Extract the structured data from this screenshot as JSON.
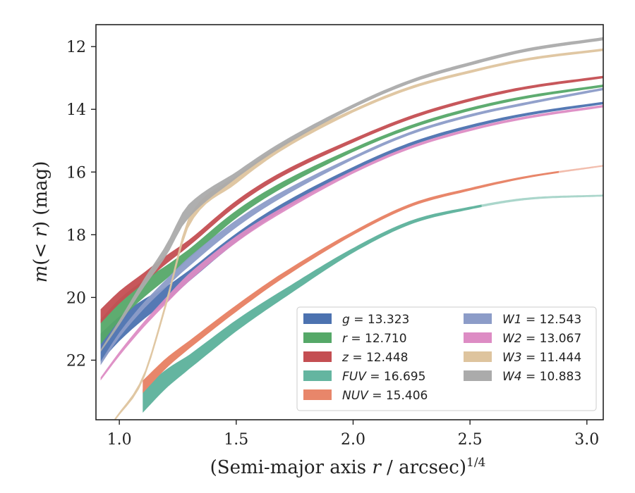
{
  "chart_data": {
    "type": "line",
    "xlabel_main": "(Semi-major axis r / arcsec)",
    "xlabel_sup": "1/4",
    "ylabel": "m(< r) (mag)",
    "xlim": [
      0.9,
      3.07
    ],
    "ylim": [
      23.9,
      11.3
    ],
    "y_inverted": true,
    "xticks": [
      "1.0",
      "1.5",
      "2.0",
      "2.5",
      "3.0"
    ],
    "yticks": [
      "12",
      "14",
      "16",
      "18",
      "20",
      "22"
    ],
    "xtick_values": [
      1.0,
      1.5,
      2.0,
      2.5,
      3.0
    ],
    "ytick_values": [
      12,
      14,
      16,
      18,
      20,
      22
    ],
    "legend_position": "lower-right",
    "series": [
      {
        "name": "g = 13.323",
        "band": "g",
        "mag": "13.323",
        "color": "#4c72b0",
        "points": [
          [
            0.92,
            21.6
          ],
          [
            1.0,
            21.0
          ],
          [
            1.1,
            20.4
          ],
          [
            1.2,
            19.9
          ],
          [
            1.3,
            19.3
          ],
          [
            1.5,
            18.1
          ],
          [
            1.7,
            17.1
          ],
          [
            2.0,
            15.9
          ],
          [
            2.25,
            15.1
          ],
          [
            2.5,
            14.55
          ],
          [
            2.75,
            14.15
          ],
          [
            3.07,
            13.8
          ]
        ],
        "width": [
          [
            0.92,
            0.9
          ],
          [
            1.3,
            0.35
          ],
          [
            2.0,
            0.12
          ],
          [
            3.07,
            0.08
          ]
        ]
      },
      {
        "name": "r = 12.710",
        "band": "r",
        "mag": "12.710",
        "color": "#55a868",
        "points": [
          [
            0.92,
            21.1
          ],
          [
            1.0,
            20.4
          ],
          [
            1.1,
            19.75
          ],
          [
            1.2,
            19.2
          ],
          [
            1.3,
            18.6
          ],
          [
            1.5,
            17.35
          ],
          [
            1.7,
            16.4
          ],
          [
            2.0,
            15.3
          ],
          [
            2.25,
            14.55
          ],
          [
            2.5,
            14.0
          ],
          [
            2.75,
            13.6
          ],
          [
            3.07,
            13.25
          ]
        ],
        "width": [
          [
            0.92,
            0.8
          ],
          [
            1.3,
            0.3
          ],
          [
            2.0,
            0.12
          ],
          [
            3.07,
            0.08
          ]
        ]
      },
      {
        "name": "z = 12.448",
        "band": "z",
        "mag": "12.448",
        "color": "#c44e52",
        "points": [
          [
            0.92,
            20.6
          ],
          [
            1.0,
            20.0
          ],
          [
            1.1,
            19.4
          ],
          [
            1.2,
            18.8
          ],
          [
            1.3,
            18.25
          ],
          [
            1.5,
            17.0
          ],
          [
            1.7,
            16.05
          ],
          [
            2.0,
            15.0
          ],
          [
            2.25,
            14.25
          ],
          [
            2.5,
            13.7
          ],
          [
            2.75,
            13.3
          ],
          [
            3.07,
            12.97
          ]
        ],
        "width": [
          [
            0.92,
            0.45
          ],
          [
            1.3,
            0.2
          ],
          [
            2.0,
            0.12
          ],
          [
            3.07,
            0.08
          ]
        ]
      },
      {
        "name": "FUV = 16.695",
        "band": "FUV",
        "mag": "16.695",
        "color": "#64b5a0",
        "points": [
          [
            1.1,
            23.3
          ],
          [
            1.2,
            22.6
          ],
          [
            1.3,
            22.05
          ],
          [
            1.5,
            20.9
          ],
          [
            1.7,
            19.9
          ],
          [
            2.0,
            18.5
          ],
          [
            2.25,
            17.6
          ],
          [
            2.5,
            17.15
          ],
          [
            2.75,
            16.85
          ],
          [
            3.07,
            16.75
          ]
        ],
        "width": [
          [
            1.1,
            0.75
          ],
          [
            1.3,
            0.45
          ],
          [
            2.0,
            0.15
          ],
          [
            2.55,
            0.08
          ],
          [
            3.07,
            0.06
          ]
        ],
        "faint_after": 2.55
      },
      {
        "name": "NUV = 15.406",
        "band": "NUV",
        "mag": "15.406",
        "color": "#e8866a",
        "points": [
          [
            1.1,
            22.85
          ],
          [
            1.2,
            22.1
          ],
          [
            1.3,
            21.5
          ],
          [
            1.5,
            20.35
          ],
          [
            1.7,
            19.3
          ],
          [
            2.0,
            17.95
          ],
          [
            2.25,
            17.05
          ],
          [
            2.5,
            16.55
          ],
          [
            2.75,
            16.15
          ],
          [
            3.07,
            15.8
          ]
        ],
        "width": [
          [
            1.1,
            0.4
          ],
          [
            1.3,
            0.25
          ],
          [
            2.0,
            0.12
          ],
          [
            2.9,
            0.06
          ],
          [
            3.07,
            0.05
          ]
        ],
        "faint_after": 2.88
      },
      {
        "name": "W1 = 12.543",
        "band": "W1",
        "mag": "12.543",
        "color": "#8c9cc8",
        "points": [
          [
            0.92,
            22.1
          ],
          [
            1.0,
            21.2
          ],
          [
            1.1,
            20.3
          ],
          [
            1.2,
            19.55
          ],
          [
            1.3,
            18.85
          ],
          [
            1.5,
            17.65
          ],
          [
            1.7,
            16.7
          ],
          [
            2.0,
            15.55
          ],
          [
            2.25,
            14.75
          ],
          [
            2.5,
            14.2
          ],
          [
            2.75,
            13.8
          ],
          [
            3.07,
            13.35
          ]
        ],
        "width": [
          [
            0.92,
            0.12
          ],
          [
            1.3,
            0.3
          ],
          [
            2.0,
            0.1
          ],
          [
            3.07,
            0.08
          ]
        ]
      },
      {
        "name": "W2 = 13.067",
        "band": "W2",
        "mag": "13.067",
        "color": "#dd8cc4",
        "points": [
          [
            0.92,
            22.6
          ],
          [
            1.0,
            21.8
          ],
          [
            1.1,
            20.9
          ],
          [
            1.2,
            20.1
          ],
          [
            1.3,
            19.35
          ],
          [
            1.5,
            18.15
          ],
          [
            1.7,
            17.2
          ],
          [
            2.0,
            16.0
          ],
          [
            2.25,
            15.2
          ],
          [
            2.5,
            14.65
          ],
          [
            2.75,
            14.25
          ],
          [
            3.07,
            13.9
          ]
        ],
        "width": [
          [
            0.92,
            0.1
          ],
          [
            1.3,
            0.25
          ],
          [
            2.0,
            0.1
          ],
          [
            3.07,
            0.08
          ]
        ]
      },
      {
        "name": "W3 = 11.444",
        "band": "W3",
        "mag": "11.444",
        "color": "#dec49e",
        "points": [
          [
            0.98,
            23.9
          ],
          [
            1.1,
            22.6
          ],
          [
            1.2,
            20.2
          ],
          [
            1.3,
            17.55
          ],
          [
            1.5,
            16.25
          ],
          [
            1.7,
            15.2
          ],
          [
            2.0,
            14.05
          ],
          [
            2.25,
            13.3
          ],
          [
            2.5,
            12.8
          ],
          [
            2.75,
            12.4
          ],
          [
            3.07,
            12.1
          ]
        ],
        "width": [
          [
            0.98,
            0.08
          ],
          [
            1.3,
            0.3
          ],
          [
            2.0,
            0.1
          ],
          [
            3.07,
            0.08
          ]
        ]
      },
      {
        "name": "W4 = 10.883",
        "band": "W4",
        "mag": "10.883",
        "color": "#ababab",
        "points": [
          [
            0.92,
            21.7
          ],
          [
            1.0,
            20.8
          ],
          [
            1.1,
            19.6
          ],
          [
            1.2,
            18.5
          ],
          [
            1.29,
            17.3
          ],
          [
            1.5,
            16.1
          ],
          [
            1.7,
            15.1
          ],
          [
            2.0,
            13.9
          ],
          [
            2.25,
            13.1
          ],
          [
            2.5,
            12.55
          ],
          [
            2.75,
            12.1
          ],
          [
            3.07,
            11.75
          ]
        ],
        "width": [
          [
            0.92,
            0.08
          ],
          [
            1.29,
            0.45
          ],
          [
            1.5,
            0.2
          ],
          [
            2.0,
            0.12
          ],
          [
            3.07,
            0.1
          ]
        ]
      }
    ]
  }
}
